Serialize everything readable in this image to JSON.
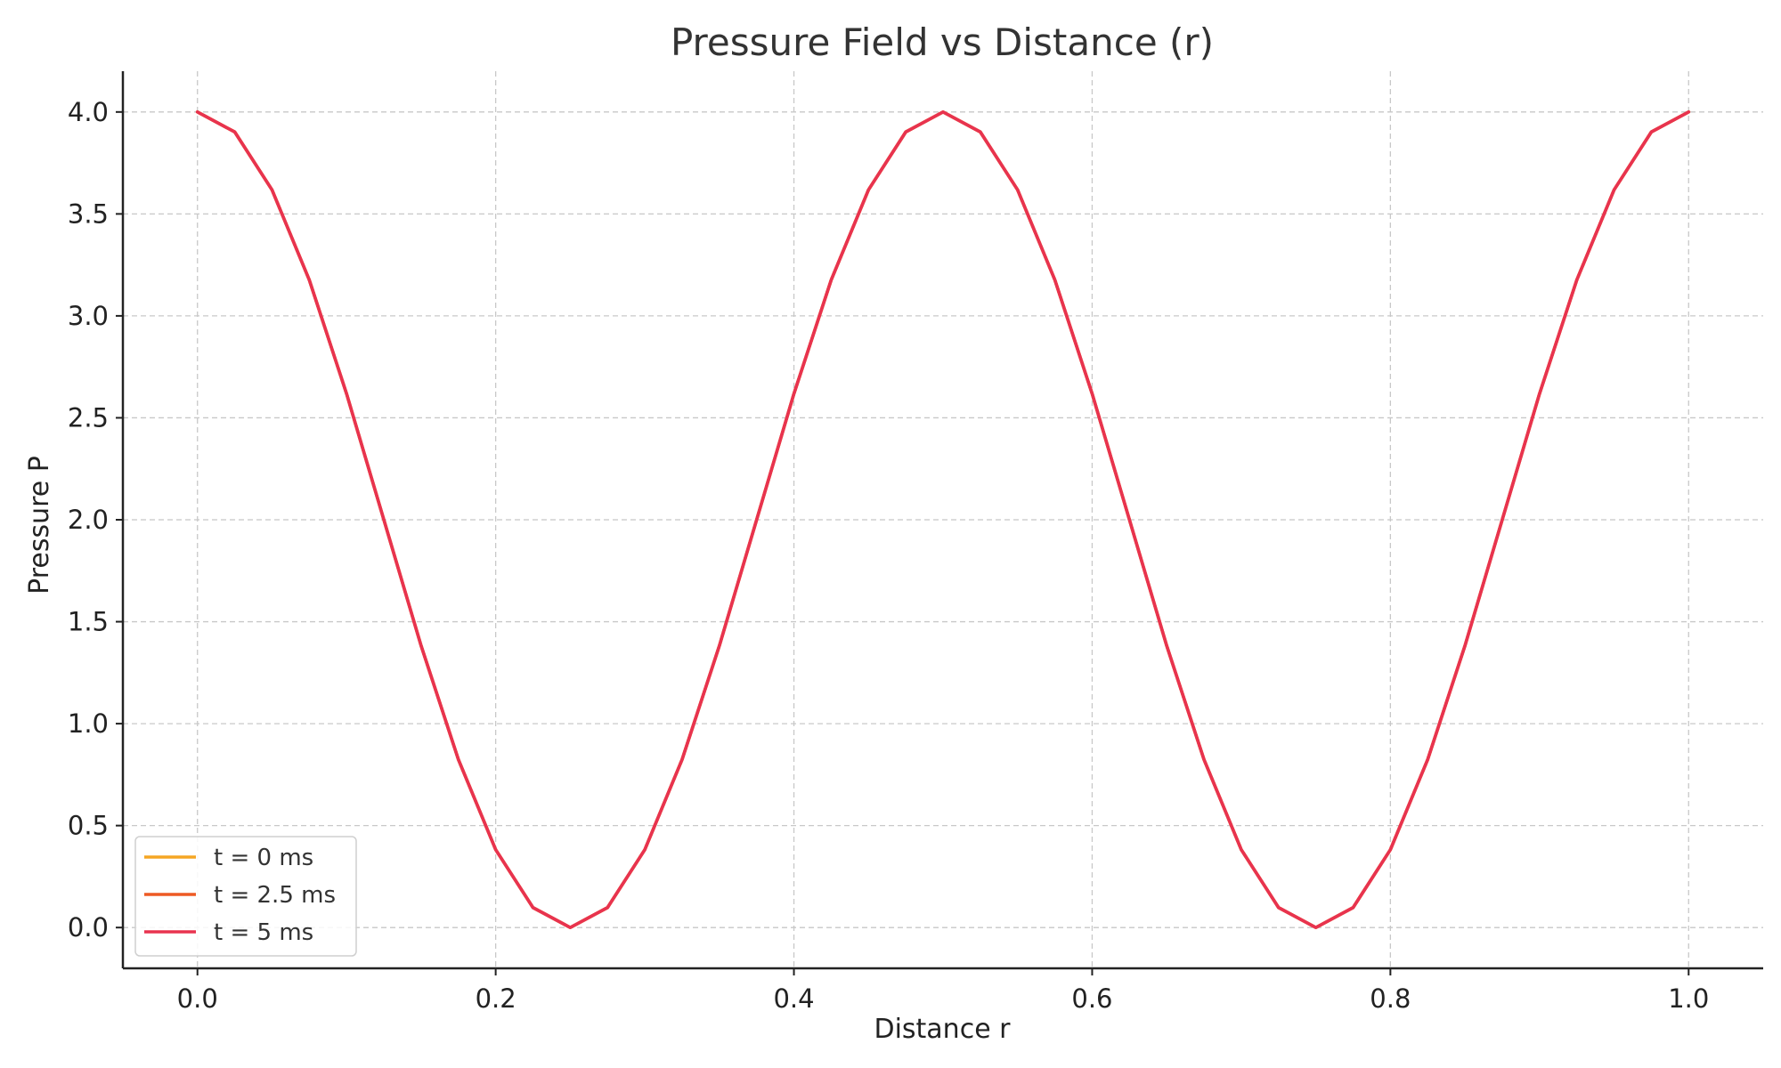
{
  "chart_data": {
    "type": "line",
    "title": "Pressure Field vs Distance (r)",
    "xlabel": "Distance r",
    "ylabel": "Pressure P",
    "xlim": [
      -0.05,
      1.05
    ],
    "ylim": [
      -0.2,
      4.2
    ],
    "x_ticks": [
      0.0,
      0.2,
      0.4,
      0.6,
      0.8,
      1.0
    ],
    "x_tick_labels": [
      "0.0",
      "0.2",
      "0.4",
      "0.6",
      "0.8",
      "1.0"
    ],
    "y_ticks": [
      0.0,
      0.5,
      1.0,
      1.5,
      2.0,
      2.5,
      3.0,
      3.5,
      4.0
    ],
    "y_tick_labels": [
      "0.0",
      "0.5",
      "1.0",
      "1.5",
      "2.0",
      "2.5",
      "3.0",
      "3.5",
      "4.0"
    ],
    "grid": true,
    "legend_position": "bottom-left",
    "x": [
      0.0,
      0.025,
      0.05,
      0.075,
      0.1,
      0.125,
      0.15,
      0.175,
      0.2,
      0.225,
      0.25,
      0.275,
      0.3,
      0.325,
      0.35,
      0.375,
      0.4,
      0.425,
      0.45,
      0.475,
      0.5,
      0.525,
      0.55,
      0.575,
      0.6,
      0.625,
      0.65,
      0.675,
      0.7,
      0.725,
      0.75,
      0.775,
      0.8,
      0.825,
      0.85,
      0.875,
      0.9,
      0.925,
      0.95,
      0.975,
      1.0
    ],
    "series": [
      {
        "name": "t = 0 ms",
        "color": "#f5a623",
        "values": [
          4.0,
          3.902,
          3.618,
          3.176,
          2.618,
          2.0,
          1.382,
          0.824,
          0.382,
          0.098,
          0.0,
          0.098,
          0.382,
          0.824,
          1.382,
          2.0,
          2.618,
          3.176,
          3.618,
          3.902,
          4.0,
          3.902,
          3.618,
          3.176,
          2.618,
          2.0,
          1.382,
          0.824,
          0.382,
          0.098,
          0.0,
          0.098,
          0.382,
          0.824,
          1.382,
          2.0,
          2.618,
          3.176,
          3.618,
          3.902,
          4.0
        ]
      },
      {
        "name": "t = 2.5 ms",
        "color": "#ee5a24",
        "values": [
          4.0,
          3.902,
          3.618,
          3.176,
          2.618,
          2.0,
          1.382,
          0.824,
          0.382,
          0.098,
          0.0,
          0.098,
          0.382,
          0.824,
          1.382,
          2.0,
          2.618,
          3.176,
          3.618,
          3.902,
          4.0,
          3.902,
          3.618,
          3.176,
          2.618,
          2.0,
          1.382,
          0.824,
          0.382,
          0.098,
          0.0,
          0.098,
          0.382,
          0.824,
          1.382,
          2.0,
          2.618,
          3.176,
          3.618,
          3.902,
          4.0
        ]
      },
      {
        "name": "t = 5 ms",
        "color": "#e8334f",
        "values": [
          4.0,
          3.902,
          3.618,
          3.176,
          2.618,
          2.0,
          1.382,
          0.824,
          0.382,
          0.098,
          0.0,
          0.098,
          0.382,
          0.824,
          1.382,
          2.0,
          2.618,
          3.176,
          3.618,
          3.902,
          4.0,
          3.902,
          3.618,
          3.176,
          2.618,
          2.0,
          1.382,
          0.824,
          0.382,
          0.098,
          0.0,
          0.098,
          0.382,
          0.824,
          1.382,
          2.0,
          2.618,
          3.176,
          3.618,
          3.902,
          4.0
        ]
      }
    ]
  }
}
